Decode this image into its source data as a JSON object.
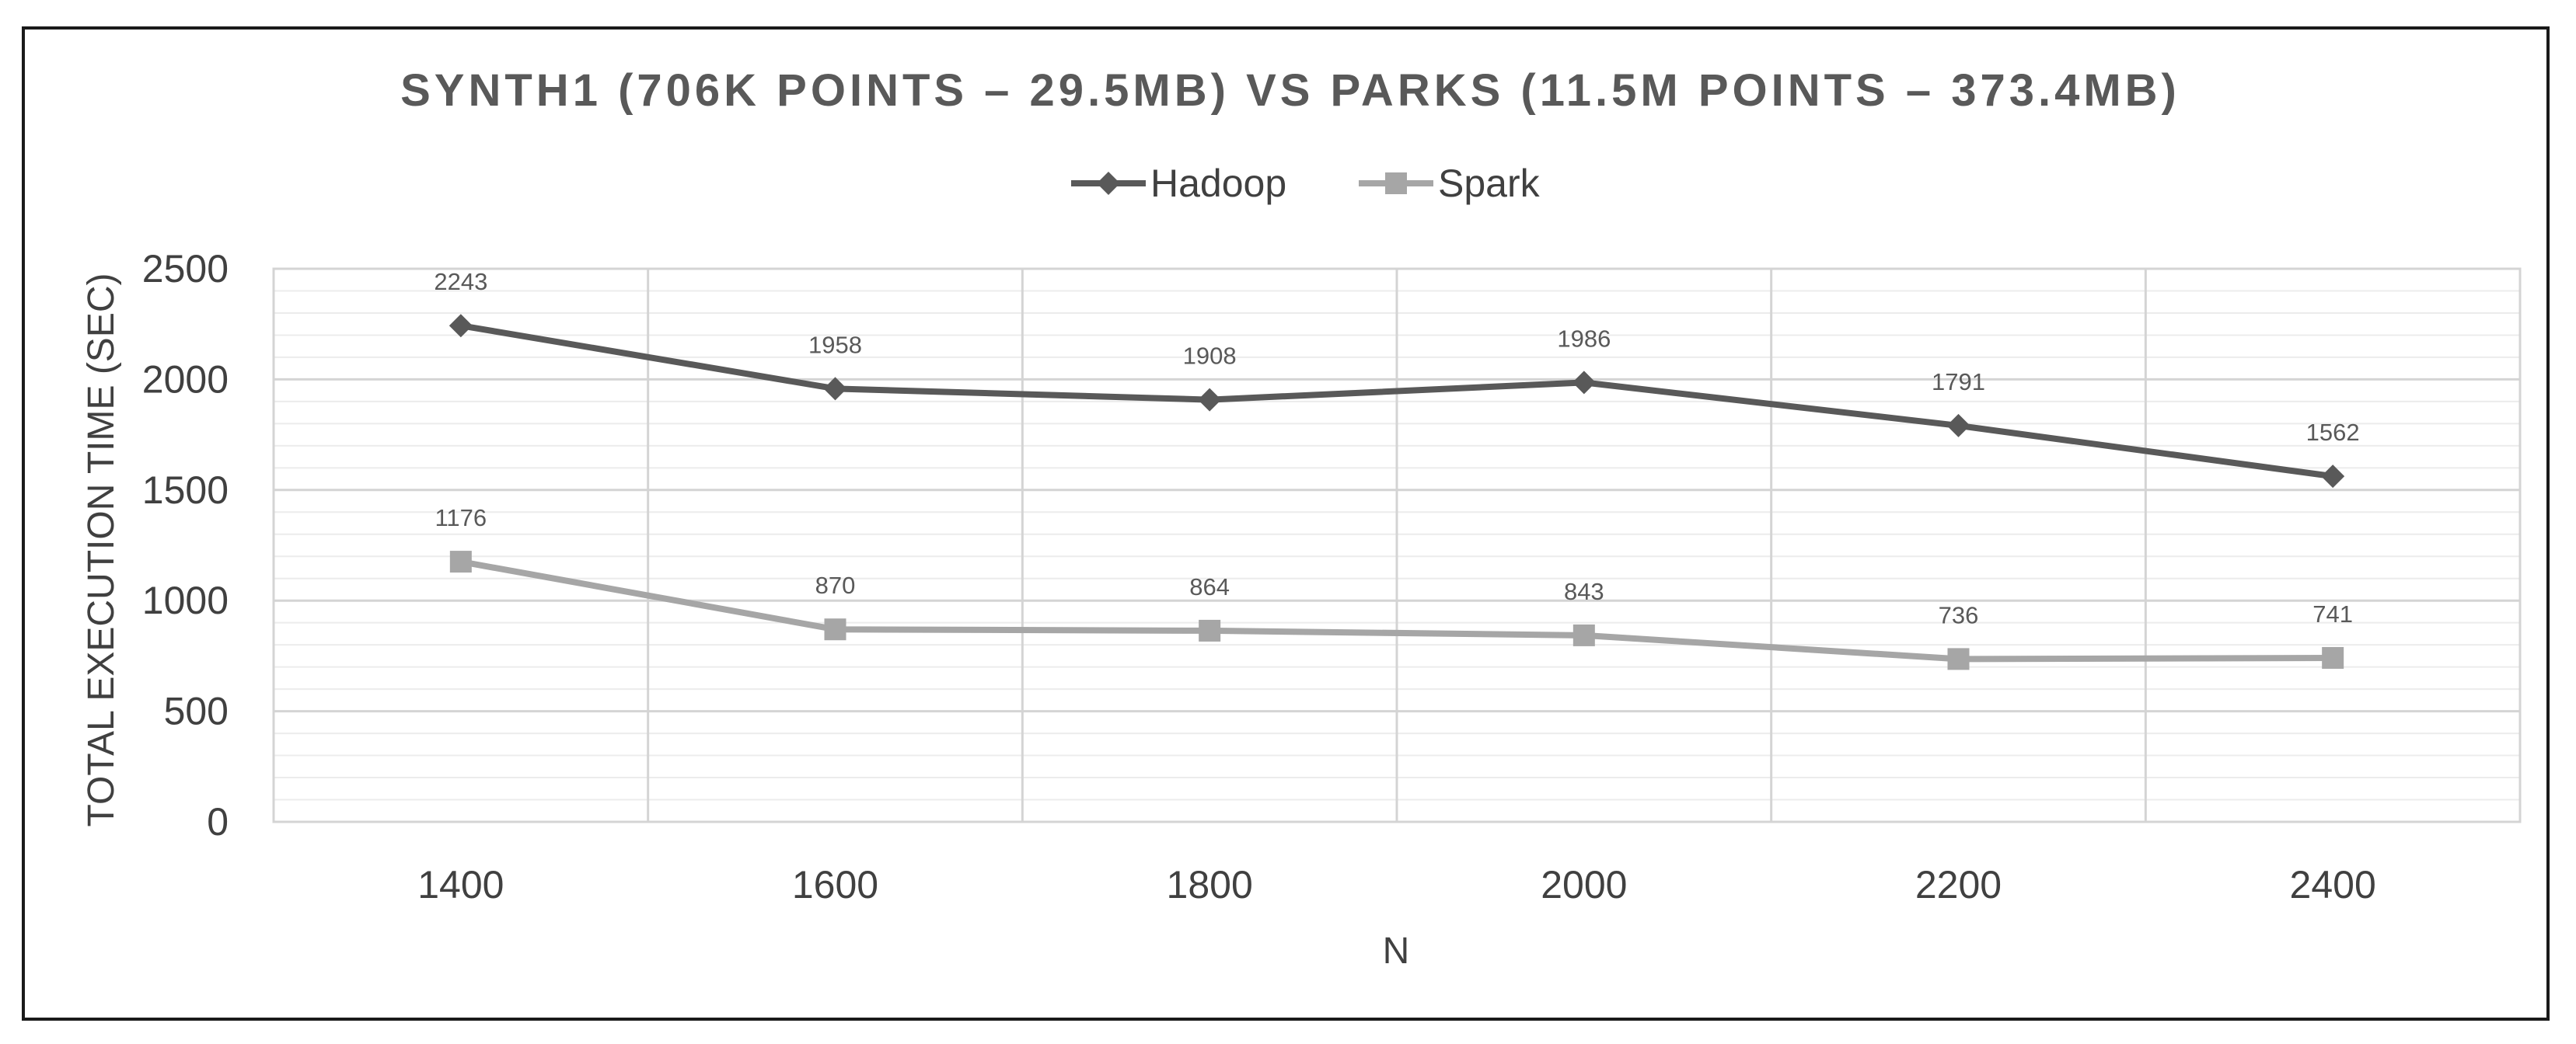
{
  "chart_data": {
    "type": "line",
    "title": "SYNTH1 (706K POINTS – 29.5MB) VS PARKS (11.5M POINTS – 373.4MB)",
    "xlabel": "N",
    "ylabel": "TOTAL EXECUTION TIME (SEC)",
    "x": [
      1400,
      1600,
      1800,
      2000,
      2200,
      2400
    ],
    "x_ticks": [
      "1400",
      "1600",
      "1800",
      "2000",
      "2200",
      "2400"
    ],
    "y_ticks": [
      "0",
      "500",
      "1000",
      "1500",
      "2000",
      "2500"
    ],
    "ylim": [
      0,
      2500
    ],
    "grid": true,
    "legend_position": "top",
    "series": [
      {
        "name": "Hadoop",
        "values": [
          2243,
          1958,
          1908,
          1986,
          1791,
          1562
        ],
        "labels": [
          "2243",
          "1958",
          "1908",
          "1986",
          "1791",
          "1562"
        ],
        "color": "#595959",
        "marker": "diamond"
      },
      {
        "name": "Spark",
        "values": [
          1176,
          870,
          864,
          843,
          736,
          741
        ],
        "labels": [
          "1176",
          "870",
          "864",
          "843",
          "736",
          "741"
        ],
        "color": "#a6a6a6",
        "marker": "square"
      }
    ]
  }
}
